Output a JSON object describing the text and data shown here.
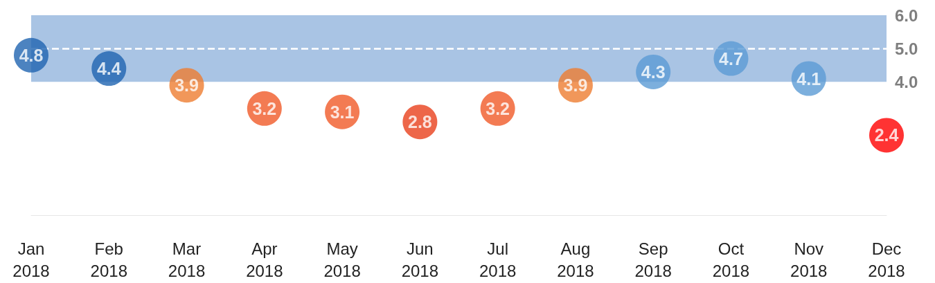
{
  "chart_data": {
    "type": "scatter",
    "categories": [
      "Jan 2018",
      "Feb 2018",
      "Mar 2018",
      "Apr 2018",
      "May 2018",
      "Jun 2018",
      "Jul 2018",
      "Aug 2018",
      "Sep 2018",
      "Oct 2018",
      "Nov 2018",
      "Dec 2018"
    ],
    "values": [
      4.8,
      4.4,
      3.9,
      3.2,
      3.1,
      2.8,
      3.2,
      3.9,
      4.3,
      4.7,
      4.1,
      2.4
    ],
    "colors": [
      "#1f64b0",
      "#1f64b0",
      "#ed7d31",
      "#f05a28",
      "#f05a28",
      "#e8401c",
      "#f05a28",
      "#ed7d31",
      "#5b9bd5",
      "#5b9bd5",
      "#5b9bd5",
      "#ff0000"
    ],
    "ylim": [
      0,
      6
    ],
    "yticks": [
      {
        "value": 4,
        "label": "4.0"
      },
      {
        "value": 5,
        "label": "5.0"
      },
      {
        "value": 6,
        "label": "6.0"
      }
    ],
    "bands": [
      {
        "axis": "y",
        "from": 4,
        "to": 6,
        "color": "#a9c4e4"
      }
    ],
    "ref_lines": [
      {
        "axis": "y",
        "value": 5,
        "color": "#ffffff",
        "line_style": "dashed"
      }
    ],
    "data_labels": true,
    "marker": "circle",
    "grid": false
  }
}
